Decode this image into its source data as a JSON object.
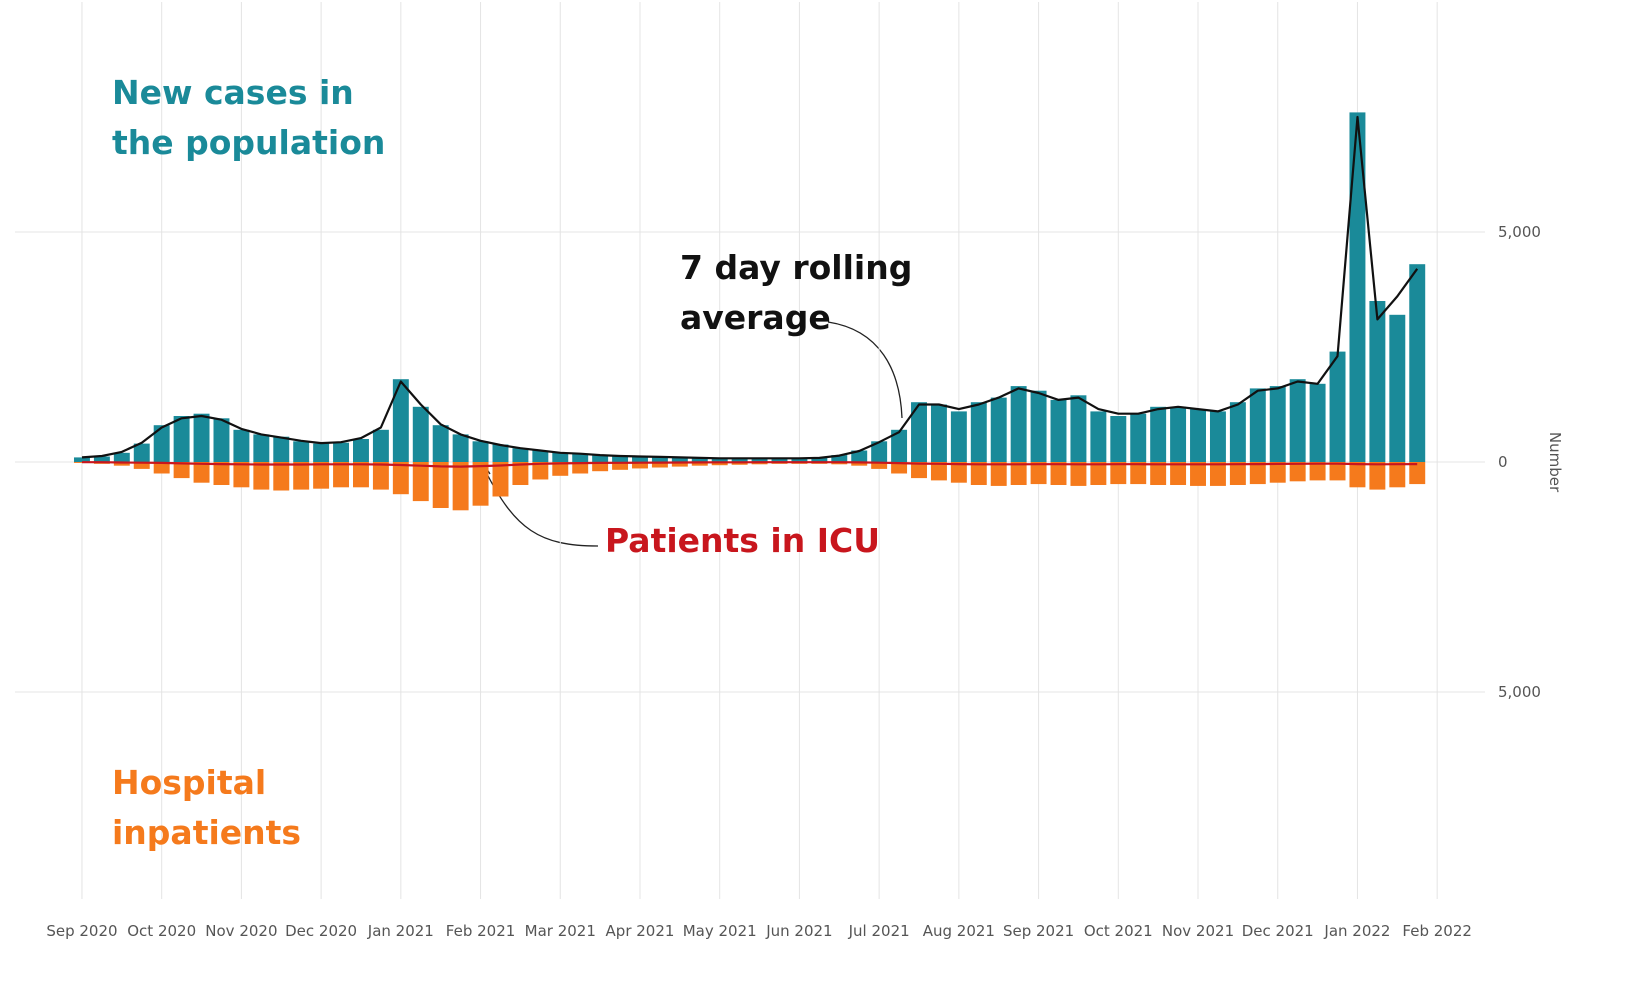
{
  "chart_data": {
    "type": "bar",
    "y_label": "Number",
    "xlim": [
      -0.84,
      17.6
    ],
    "xticks": [
      {
        "value": 0,
        "label": "Sep 2020"
      },
      {
        "value": 1,
        "label": "Oct 2020"
      },
      {
        "value": 2,
        "label": "Nov 2020"
      },
      {
        "value": 3,
        "label": "Dec 2020"
      },
      {
        "value": 4,
        "label": "Jan 2021"
      },
      {
        "value": 5,
        "label": "Feb 2021"
      },
      {
        "value": 6,
        "label": "Mar 2021"
      },
      {
        "value": 7,
        "label": "Apr 2021"
      },
      {
        "value": 8,
        "label": "May 2021"
      },
      {
        "value": 9,
        "label": "Jun 2021"
      },
      {
        "value": 10,
        "label": "Jul 2021"
      },
      {
        "value": 11,
        "label": "Aug 2021"
      },
      {
        "value": 12,
        "label": "Sep 2021"
      },
      {
        "value": 13,
        "label": "Oct 2021"
      },
      {
        "value": 14,
        "label": "Nov 2021"
      },
      {
        "value": 15,
        "label": "Dec 2021"
      },
      {
        "value": 16,
        "label": "Jan 2022"
      },
      {
        "value": 17,
        "label": "Feb 2022"
      }
    ],
    "ylim": [
      -9500,
      10000
    ],
    "yticks": [
      {
        "value": -5000,
        "label": "5,000"
      },
      0,
      {
        "value": 5000,
        "label": "5,000"
      }
    ],
    "grid": true,
    "x": [
      0,
      0.25,
      0.5,
      0.75,
      1,
      1.25,
      1.5,
      1.75,
      2,
      2.25,
      2.5,
      2.75,
      3,
      3.25,
      3.5,
      3.75,
      4,
      4.25,
      4.5,
      4.75,
      5,
      5.25,
      5.5,
      5.75,
      6,
      6.25,
      6.5,
      6.75,
      7,
      7.25,
      7.5,
      7.75,
      8,
      8.25,
      8.5,
      8.75,
      9,
      9.25,
      9.5,
      9.75,
      10,
      10.25,
      10.5,
      10.75,
      11,
      11.25,
      11.5,
      11.75,
      12,
      12.25,
      12.5,
      12.75,
      13,
      13.25,
      13.5,
      13.75,
      14,
      14.25,
      14.5,
      14.75,
      15,
      15.25,
      15.5,
      15.75,
      16,
      16.25,
      16.5,
      16.75
    ],
    "series": [
      {
        "name": "New cases in the population",
        "color": "#1a8a99",
        "kind": "bar",
        "values": [
          100,
          120,
          200,
          400,
          800,
          1000,
          1050,
          950,
          700,
          600,
          550,
          450,
          400,
          420,
          500,
          700,
          1800,
          1200,
          800,
          600,
          450,
          380,
          300,
          250,
          200,
          180,
          150,
          130,
          120,
          110,
          100,
          90,
          80,
          80,
          80,
          80,
          80,
          90,
          150,
          250,
          450,
          700,
          1300,
          1250,
          1100,
          1300,
          1400,
          1650,
          1550,
          1350,
          1450,
          1100,
          1000,
          1050,
          1200,
          1200,
          1150,
          1100,
          1300,
          1600,
          1650,
          1800,
          1700,
          2400,
          7600,
          3500,
          3200,
          4300
        ]
      },
      {
        "name": "Hospital inpatients",
        "color": "#f57a1c",
        "kind": "bar",
        "values": [
          -20,
          -40,
          -80,
          -150,
          -250,
          -350,
          -450,
          -500,
          -550,
          -600,
          -620,
          -600,
          -580,
          -550,
          -550,
          -600,
          -700,
          -850,
          -1000,
          -1050,
          -950,
          -750,
          -500,
          -380,
          -300,
          -250,
          -200,
          -170,
          -140,
          -120,
          -100,
          -80,
          -70,
          -60,
          -50,
          -40,
          -40,
          -40,
          -50,
          -80,
          -150,
          -250,
          -350,
          -400,
          -450,
          -500,
          -520,
          -500,
          -480,
          -500,
          -520,
          -500,
          -480,
          -480,
          -500,
          -500,
          -520,
          -520,
          -500,
          -480,
          -450,
          -420,
          -400,
          -400,
          -550,
          -600,
          -550,
          -480
        ]
      },
      {
        "name": "Patients in ICU",
        "color": "#c8161d",
        "kind": "line",
        "values": [
          -5,
          -5,
          -10,
          -15,
          -20,
          -30,
          -40,
          -45,
          -50,
          -55,
          -55,
          -55,
          -50,
          -50,
          -50,
          -55,
          -65,
          -80,
          -95,
          -100,
          -90,
          -75,
          -55,
          -40,
          -30,
          -25,
          -20,
          -18,
          -15,
          -12,
          -10,
          -8,
          -7,
          -6,
          -5,
          -5,
          -5,
          -5,
          -5,
          -8,
          -15,
          -25,
          -35,
          -40,
          -45,
          -50,
          -50,
          -50,
          -48,
          -48,
          -50,
          -50,
          -48,
          -48,
          -50,
          -50,
          -50,
          -50,
          -48,
          -45,
          -42,
          -40,
          -38,
          -38,
          -45,
          -50,
          -48,
          -45
        ]
      },
      {
        "name": "7 day rolling average",
        "color": "#111111",
        "kind": "line",
        "values": [
          100,
          130,
          220,
          420,
          750,
          950,
          1000,
          920,
          720,
          600,
          530,
          460,
          410,
          430,
          520,
          750,
          1750,
          1250,
          820,
          600,
          460,
          370,
          300,
          250,
          200,
          180,
          150,
          130,
          120,
          110,
          100,
          90,
          80,
          80,
          80,
          80,
          80,
          90,
          140,
          240,
          430,
          650,
          1250,
          1250,
          1150,
          1250,
          1400,
          1600,
          1500,
          1350,
          1400,
          1150,
          1050,
          1050,
          1150,
          1200,
          1150,
          1100,
          1250,
          1550,
          1600,
          1750,
          1700,
          2300,
          7500,
          3100,
          3600,
          4200
        ]
      }
    ]
  }
}
